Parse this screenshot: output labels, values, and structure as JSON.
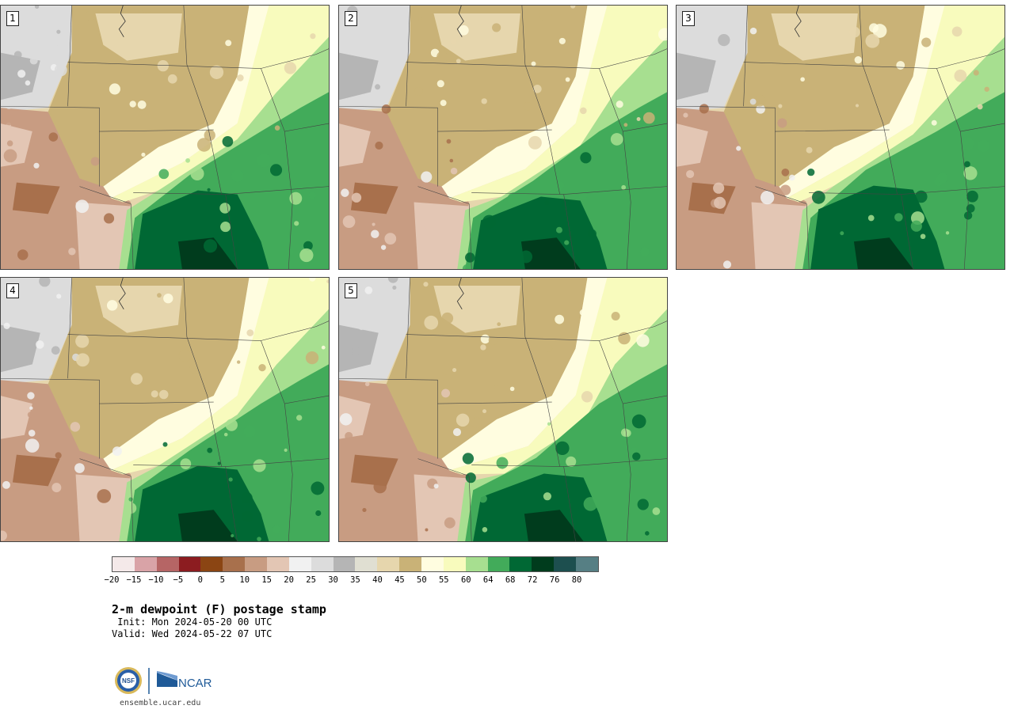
{
  "panels": [
    {
      "label": "1",
      "variant": 0
    },
    {
      "label": "2",
      "variant": 1
    },
    {
      "label": "3",
      "variant": 2
    },
    {
      "label": "4",
      "variant": 3
    },
    {
      "label": "5",
      "variant": 4
    }
  ],
  "legend": {
    "colors": [
      "#f4e9e9",
      "#d9a3a7",
      "#b66565",
      "#8c1c20",
      "#8b4513",
      "#a8704c",
      "#c89c82",
      "#e3c6b4",
      "#f1f1f1",
      "#dcdcdc",
      "#b5b5b5",
      "#e0dfd2",
      "#e6d6ad",
      "#c9b277",
      "#fffde0",
      "#f8fbbd",
      "#a7df90",
      "#42ab5a",
      "#006834",
      "#003c1d",
      "#1d4f4f",
      "#567f84"
    ],
    "ticks": [
      "−20",
      "−15",
      "−10",
      "−5",
      "0",
      "5",
      "10",
      "15",
      "20",
      "25",
      "30",
      "35",
      "40",
      "45",
      "50",
      "55",
      "60",
      "64",
      "68",
      "72",
      "76",
      "80"
    ]
  },
  "title": "2-m dewpoint (F) postage stamp",
  "init": " Init: Mon 2024-05-20 00 UTC",
  "valid": "Valid: Wed 2024-05-22 07 UTC",
  "logo": {
    "left_text": "NSF",
    "right_text": "NCAR",
    "brand_color": "#1f5a98"
  },
  "site": "ensemble.ucar.edu"
}
